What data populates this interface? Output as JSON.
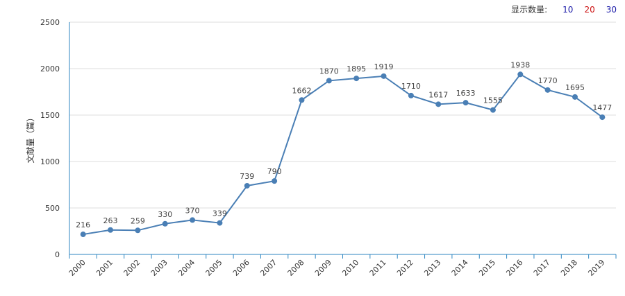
{
  "toolbar": {
    "label": "显示数量:",
    "options": [
      {
        "text": "10",
        "color": "#1a1aa8"
      },
      {
        "text": "20",
        "color": "#cc1111"
      },
      {
        "text": "30",
        "color": "#1a1aa8"
      }
    ]
  },
  "colors": {
    "series": "#4a7fb5",
    "axis": "#2e86c1",
    "grid": "#dddddd"
  },
  "chart_data": {
    "type": "line",
    "title": "",
    "xlabel": "",
    "ylabel": "文献量（篇）",
    "ylim": [
      0,
      2500
    ],
    "yticks": [
      0,
      500,
      1000,
      1500,
      2000,
      2500
    ],
    "categories": [
      "2000",
      "2001",
      "2002",
      "2003",
      "2004",
      "2005",
      "2006",
      "2007",
      "2008",
      "2009",
      "2010",
      "2011",
      "2012",
      "2013",
      "2014",
      "2015",
      "2016",
      "2017",
      "2018",
      "2019"
    ],
    "values": [
      216,
      263,
      259,
      330,
      370,
      339,
      739,
      790,
      1662,
      1870,
      1895,
      1919,
      1710,
      1617,
      1633,
      1555,
      1938,
      1770,
      1695,
      1477
    ]
  }
}
